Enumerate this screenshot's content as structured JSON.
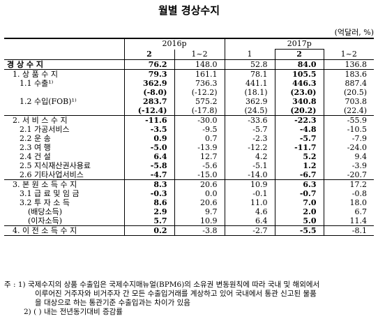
{
  "title": "월별 경상수지",
  "unit": "(억달러, %)",
  "header": {
    "year1": "2016p",
    "year2": "2017p",
    "cols": [
      "2",
      "1~2",
      "1",
      "2",
      "1~2"
    ]
  },
  "rows": [
    {
      "label": "경 상 수 지",
      "values": [
        "76.2",
        "148.0",
        "52.8",
        "84.0",
        "136.8"
      ],
      "bold": [
        true,
        false,
        false,
        true,
        false
      ]
    },
    {
      "label": "1. 상 품 수 지",
      "values": [
        "79.3",
        "161.1",
        "78.1",
        "105.5",
        "183.6"
      ],
      "bold": [
        true,
        false,
        false,
        true,
        false
      ]
    },
    {
      "label": "1.1 수출¹⁾",
      "values": [
        "362.9",
        "736.3",
        "441.1",
        "446.3",
        "887.4"
      ],
      "bold": [
        true,
        false,
        false,
        true,
        false
      ]
    },
    {
      "label": "",
      "values": [
        "(-8.0)",
        "(-12.2)",
        "(18.1)",
        "(23.0)",
        "(20.5)"
      ],
      "bold": [
        true,
        false,
        false,
        true,
        false
      ]
    },
    {
      "label": "1.2 수입(FOB)¹⁾",
      "values": [
        "283.7",
        "575.2",
        "362.9",
        "340.8",
        "703.8"
      ],
      "bold": [
        true,
        false,
        false,
        true,
        false
      ]
    },
    {
      "label": "",
      "values": [
        "(-12.4)",
        "(-17.8)",
        "(24.5)",
        "(20.2)",
        "(22.4)"
      ],
      "bold": [
        true,
        false,
        false,
        true,
        false
      ]
    },
    {
      "label": "2. 서 비 스 수 지",
      "values": [
        "-11.6",
        "-30.0",
        "-33.6",
        "-22.3",
        "-55.9"
      ],
      "bold": [
        true,
        false,
        false,
        true,
        false
      ]
    },
    {
      "label": "2.1 가공서비스",
      "values": [
        "-3.5",
        "-9.5",
        "-5.7",
        "-4.8",
        "-10.5"
      ],
      "bold": [
        true,
        false,
        false,
        true,
        false
      ]
    },
    {
      "label": "2.2 운 송",
      "values": [
        "0.9",
        "0.7",
        "-2.3",
        "-5.7",
        "-7.9"
      ],
      "bold": [
        true,
        false,
        false,
        true,
        false
      ]
    },
    {
      "label": "2.3 여 행",
      "values": [
        "-5.0",
        "-13.9",
        "-12.2",
        "-11.7",
        "-24.0"
      ],
      "bold": [
        true,
        false,
        false,
        true,
        false
      ]
    },
    {
      "label": "2.4 건 설",
      "values": [
        "6.4",
        "12.7",
        "4.2",
        "5.2",
        "9.4"
      ],
      "bold": [
        true,
        false,
        false,
        true,
        false
      ]
    },
    {
      "label": "2.5 지식재산권사용료",
      "values": [
        "-5.8",
        "-5.6",
        "-5.1",
        "1.2",
        "-3.9"
      ],
      "bold": [
        true,
        false,
        false,
        true,
        false
      ]
    },
    {
      "label": "2.6 기타사업서비스",
      "values": [
        "-4.7",
        "-15.0",
        "-14.0",
        "-6.7",
        "-20.7"
      ],
      "bold": [
        true,
        false,
        false,
        true,
        false
      ]
    },
    {
      "label": "3. 본 원 소 득 수 지",
      "values": [
        "8.3",
        "20.6",
        "10.9",
        "6.3",
        "17.2"
      ],
      "bold": [
        true,
        false,
        false,
        true,
        false
      ]
    },
    {
      "label": "3.1 급 료 및 임 금",
      "values": [
        "-0.3",
        "0.0",
        "-0.1",
        "-0.7",
        "-0.8"
      ],
      "bold": [
        true,
        false,
        false,
        true,
        false
      ]
    },
    {
      "label": "3.2 투 자 소 득",
      "values": [
        "8.6",
        "20.6",
        "11.0",
        "7.0",
        "18.0"
      ],
      "bold": [
        true,
        false,
        false,
        true,
        false
      ]
    },
    {
      "label": "(배당소득)",
      "values": [
        "2.9",
        "9.7",
        "4.6",
        "2.0",
        "6.7"
      ],
      "bold": [
        true,
        false,
        false,
        true,
        false
      ]
    },
    {
      "label": "(이자소득)",
      "values": [
        "5.7",
        "10.9",
        "6.4",
        "5.0",
        "11.4"
      ],
      "bold": [
        true,
        false,
        false,
        true,
        false
      ]
    },
    {
      "label": "4. 이 전 소 득 수 지",
      "values": [
        "0.2",
        "-3.8",
        "-2.7",
        "-5.5",
        "-8.1"
      ],
      "bold": [
        true,
        false,
        false,
        true,
        false
      ]
    }
  ],
  "notes": [
    "주 : 1) 국제수지의 상품 수출입은 국제수지매뉴얼(BPM6)의 소유권 변동원칙에 따라 국내 및 해외에서",
    "이루어진 거주자와 비거주자 간 모든 수출입거래를 계상하고 있어 국내에서 통관 신고된 물품",
    "을 대상으로 하는 통관기준 수출입과는 차이가 있음",
    "2) ( ) 내는 전년동기대비 증감률"
  ]
}
